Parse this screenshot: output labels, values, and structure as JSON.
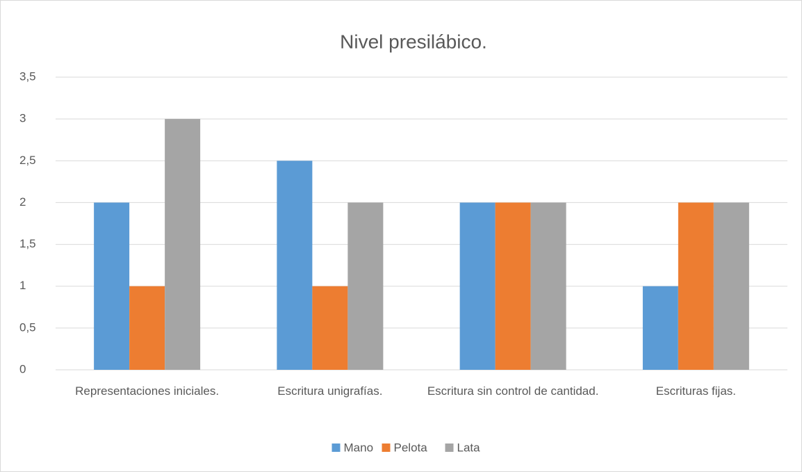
{
  "chart_data": {
    "type": "bar",
    "title": "Nivel presilábico.",
    "categories": [
      "Representaciones iniciales.",
      "Escritura unigrafías.",
      "Escritura sin control de cantidad.",
      "Escrituras fijas."
    ],
    "series": [
      {
        "name": "Mano",
        "color": "#5b9bd5",
        "values": [
          2,
          2.5,
          2,
          1
        ]
      },
      {
        "name": "Pelota",
        "color": "#ed7d31",
        "values": [
          1,
          1,
          2,
          2
        ]
      },
      {
        "name": "Lata",
        "color": "#a5a5a5",
        "values": [
          3,
          2,
          2,
          2
        ]
      }
    ],
    "ylim": [
      0,
      3.5
    ],
    "yticks": [
      0,
      {
        "value": 0.5,
        "label": "0,5"
      },
      1,
      {
        "value": 1.5,
        "label": "1,5"
      },
      2,
      {
        "value": 2.5,
        "label": "2,5"
      },
      3,
      {
        "value": 3.5,
        "label": "3,5"
      }
    ],
    "grid": true,
    "legend": "bottom"
  }
}
